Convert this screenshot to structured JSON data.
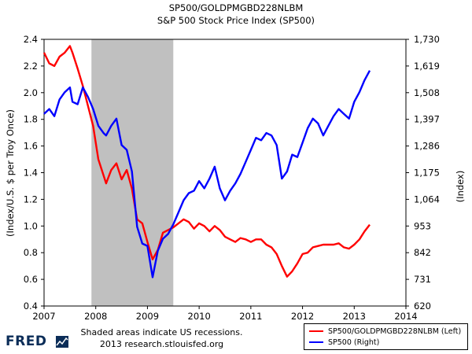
{
  "chart_data": {
    "type": "line",
    "title": "SP500/GOLDPMGBD228NLBM",
    "subtitle": "S&P 500 Stock Price Index (SP500)",
    "ylabel_left": "(Index/U.S. $ per Troy Once)",
    "ylabel_right": "(Index)",
    "x_ticks": [
      "2007",
      "2008",
      "2009",
      "2010",
      "2011",
      "2012",
      "2013",
      "2014"
    ],
    "xlim": [
      2007,
      2014
    ],
    "y_left_ticks": [
      "0.4",
      "0.6",
      "0.8",
      "1.0",
      "1.2",
      "1.4",
      "1.6",
      "1.8",
      "2.0",
      "2.2",
      "2.4"
    ],
    "ylim_left": [
      0.4,
      2.4
    ],
    "y_right_ticks": [
      "620",
      "731",
      "842",
      "953",
      "1,064",
      "1,175",
      "1,286",
      "1,397",
      "1,508",
      "1,619",
      "1,730"
    ],
    "ylim_right": [
      620,
      1730
    ],
    "recession": [
      2007.917,
      2009.5
    ],
    "series": [
      {
        "name": "SP500/GOLDPMGBD228NLBM (Left)",
        "axis": "left",
        "color": "#ff0000",
        "x": [
          2007.0,
          2007.1,
          2007.2,
          2007.3,
          2007.4,
          2007.5,
          2007.55,
          2007.65,
          2007.75,
          2007.85,
          2007.95,
          2008.05,
          2008.15,
          2008.2,
          2008.3,
          2008.4,
          2008.5,
          2008.6,
          2008.7,
          2008.8,
          2008.9,
          2009.0,
          2009.1,
          2009.2,
          2009.3,
          2009.4,
          2009.5,
          2009.6,
          2009.7,
          2009.8,
          2009.9,
          2010.0,
          2010.1,
          2010.2,
          2010.3,
          2010.4,
          2010.5,
          2010.6,
          2010.7,
          2010.8,
          2010.9,
          2011.0,
          2011.1,
          2011.2,
          2011.3,
          2011.4,
          2011.5,
          2011.6,
          2011.7,
          2011.8,
          2011.9,
          2012.0,
          2012.1,
          2012.2,
          2012.3,
          2012.4,
          2012.5,
          2012.6,
          2012.7,
          2012.8,
          2012.9,
          2013.0,
          2013.1,
          2013.2,
          2013.3
        ],
        "values": [
          2.3,
          2.22,
          2.2,
          2.27,
          2.3,
          2.35,
          2.3,
          2.18,
          2.05,
          1.9,
          1.75,
          1.5,
          1.38,
          1.32,
          1.42,
          1.47,
          1.35,
          1.42,
          1.28,
          1.05,
          1.02,
          0.88,
          0.75,
          0.82,
          0.95,
          0.97,
          0.99,
          1.02,
          1.05,
          1.03,
          0.98,
          1.02,
          1.0,
          0.96,
          1.0,
          0.97,
          0.92,
          0.9,
          0.88,
          0.91,
          0.9,
          0.88,
          0.9,
          0.9,
          0.86,
          0.84,
          0.79,
          0.7,
          0.62,
          0.66,
          0.72,
          0.79,
          0.8,
          0.84,
          0.85,
          0.86,
          0.86,
          0.86,
          0.87,
          0.84,
          0.83,
          0.86,
          0.9,
          0.96,
          1.01
        ]
      },
      {
        "name": "SP500 (Right)",
        "axis": "right",
        "color": "#0000ff",
        "x": [
          2007.0,
          2007.1,
          2007.2,
          2007.3,
          2007.4,
          2007.5,
          2007.55,
          2007.65,
          2007.75,
          2007.85,
          2007.95,
          2008.05,
          2008.15,
          2008.2,
          2008.3,
          2008.4,
          2008.5,
          2008.6,
          2008.7,
          2008.8,
          2008.9,
          2009.0,
          2009.1,
          2009.2,
          2009.3,
          2009.4,
          2009.5,
          2009.6,
          2009.7,
          2009.8,
          2009.9,
          2010.0,
          2010.1,
          2010.2,
          2010.3,
          2010.4,
          2010.5,
          2010.6,
          2010.7,
          2010.8,
          2010.9,
          2011.0,
          2011.1,
          2011.2,
          2011.3,
          2011.4,
          2011.5,
          2011.6,
          2011.7,
          2011.8,
          2011.9,
          2012.0,
          2012.1,
          2012.2,
          2012.3,
          2012.4,
          2012.5,
          2012.6,
          2012.7,
          2012.8,
          2012.9,
          2013.0,
          2013.1,
          2013.2,
          2013.3
        ],
        "values": [
          1420,
          1440,
          1410,
          1480,
          1510,
          1530,
          1470,
          1460,
          1530,
          1490,
          1440,
          1370,
          1340,
          1330,
          1370,
          1400,
          1290,
          1270,
          1180,
          950,
          880,
          870,
          740,
          850,
          900,
          920,
          960,
          1010,
          1060,
          1090,
          1100,
          1140,
          1110,
          1150,
          1200,
          1110,
          1060,
          1100,
          1130,
          1170,
          1220,
          1270,
          1320,
          1310,
          1340,
          1330,
          1290,
          1150,
          1180,
          1250,
          1240,
          1300,
          1360,
          1400,
          1380,
          1330,
          1370,
          1410,
          1440,
          1420,
          1400,
          1470,
          1510,
          1560,
          1600
        ]
      }
    ],
    "recession_note": "Shaded areas indicate US recessions.",
    "source_note": "2013 research.stlouisfed.org",
    "logo": "FRED"
  }
}
